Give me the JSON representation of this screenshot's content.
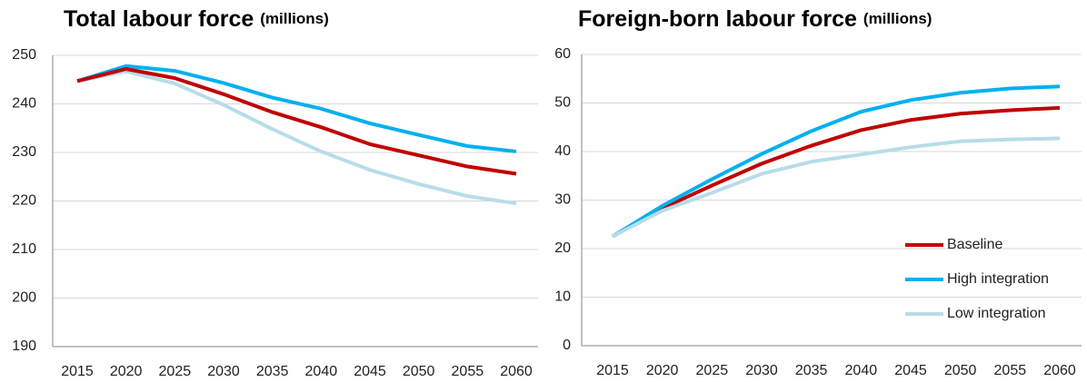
{
  "chart_data": [
    {
      "type": "line",
      "title": "Total labour force",
      "title_unit": "(millions)",
      "categories": [
        "2015",
        "2020",
        "2025",
        "2030",
        "2035",
        "2040",
        "2045",
        "2050",
        "2055",
        "2060"
      ],
      "ylim": [
        190,
        250
      ],
      "yticks": [
        190,
        200,
        210,
        220,
        230,
        240,
        250
      ],
      "grid": true,
      "series": [
        {
          "color": "#b7dde8",
          "values": [
            244.7,
            246.7,
            244.2,
            239.8,
            234.8,
            230.2,
            226.4,
            223.5,
            221.0,
            219.5
          ]
        },
        {
          "color": "#00b0f0",
          "values": [
            244.7,
            247.8,
            246.8,
            244.3,
            241.3,
            239.0,
            236.0,
            233.6,
            231.3,
            230.2
          ]
        },
        {
          "color": "#c00000",
          "values": [
            244.7,
            247.2,
            245.3,
            242.0,
            238.3,
            235.2,
            231.7,
            229.4,
            227.1,
            225.6
          ]
        }
      ]
    },
    {
      "type": "line",
      "title": "Foreign-born labour force",
      "title_unit": "(millions)",
      "categories": [
        "2015",
        "2020",
        "2025",
        "2030",
        "2035",
        "2040",
        "2045",
        "2050",
        "2055",
        "2060"
      ],
      "ylim": [
        0,
        60
      ],
      "yticks": [
        0,
        10,
        20,
        30,
        40,
        50,
        60
      ],
      "grid": true,
      "legend": "lower right",
      "series": [
        {
          "name": "Baseline",
          "color": "#c00000",
          "values": [
            22.5,
            28.3,
            33.0,
            37.5,
            41.2,
            44.4,
            46.5,
            47.8,
            48.5,
            49.0
          ]
        },
        {
          "name": "High integration",
          "color": "#00b0f0",
          "values": [
            22.5,
            28.8,
            34.3,
            39.5,
            44.2,
            48.2,
            50.6,
            52.1,
            53.0,
            53.4
          ]
        },
        {
          "name": "Low integration",
          "color": "#b7dde8",
          "values": [
            22.5,
            27.8,
            31.5,
            35.4,
            37.9,
            39.4,
            40.9,
            42.1,
            42.5,
            42.7
          ]
        }
      ]
    }
  ]
}
